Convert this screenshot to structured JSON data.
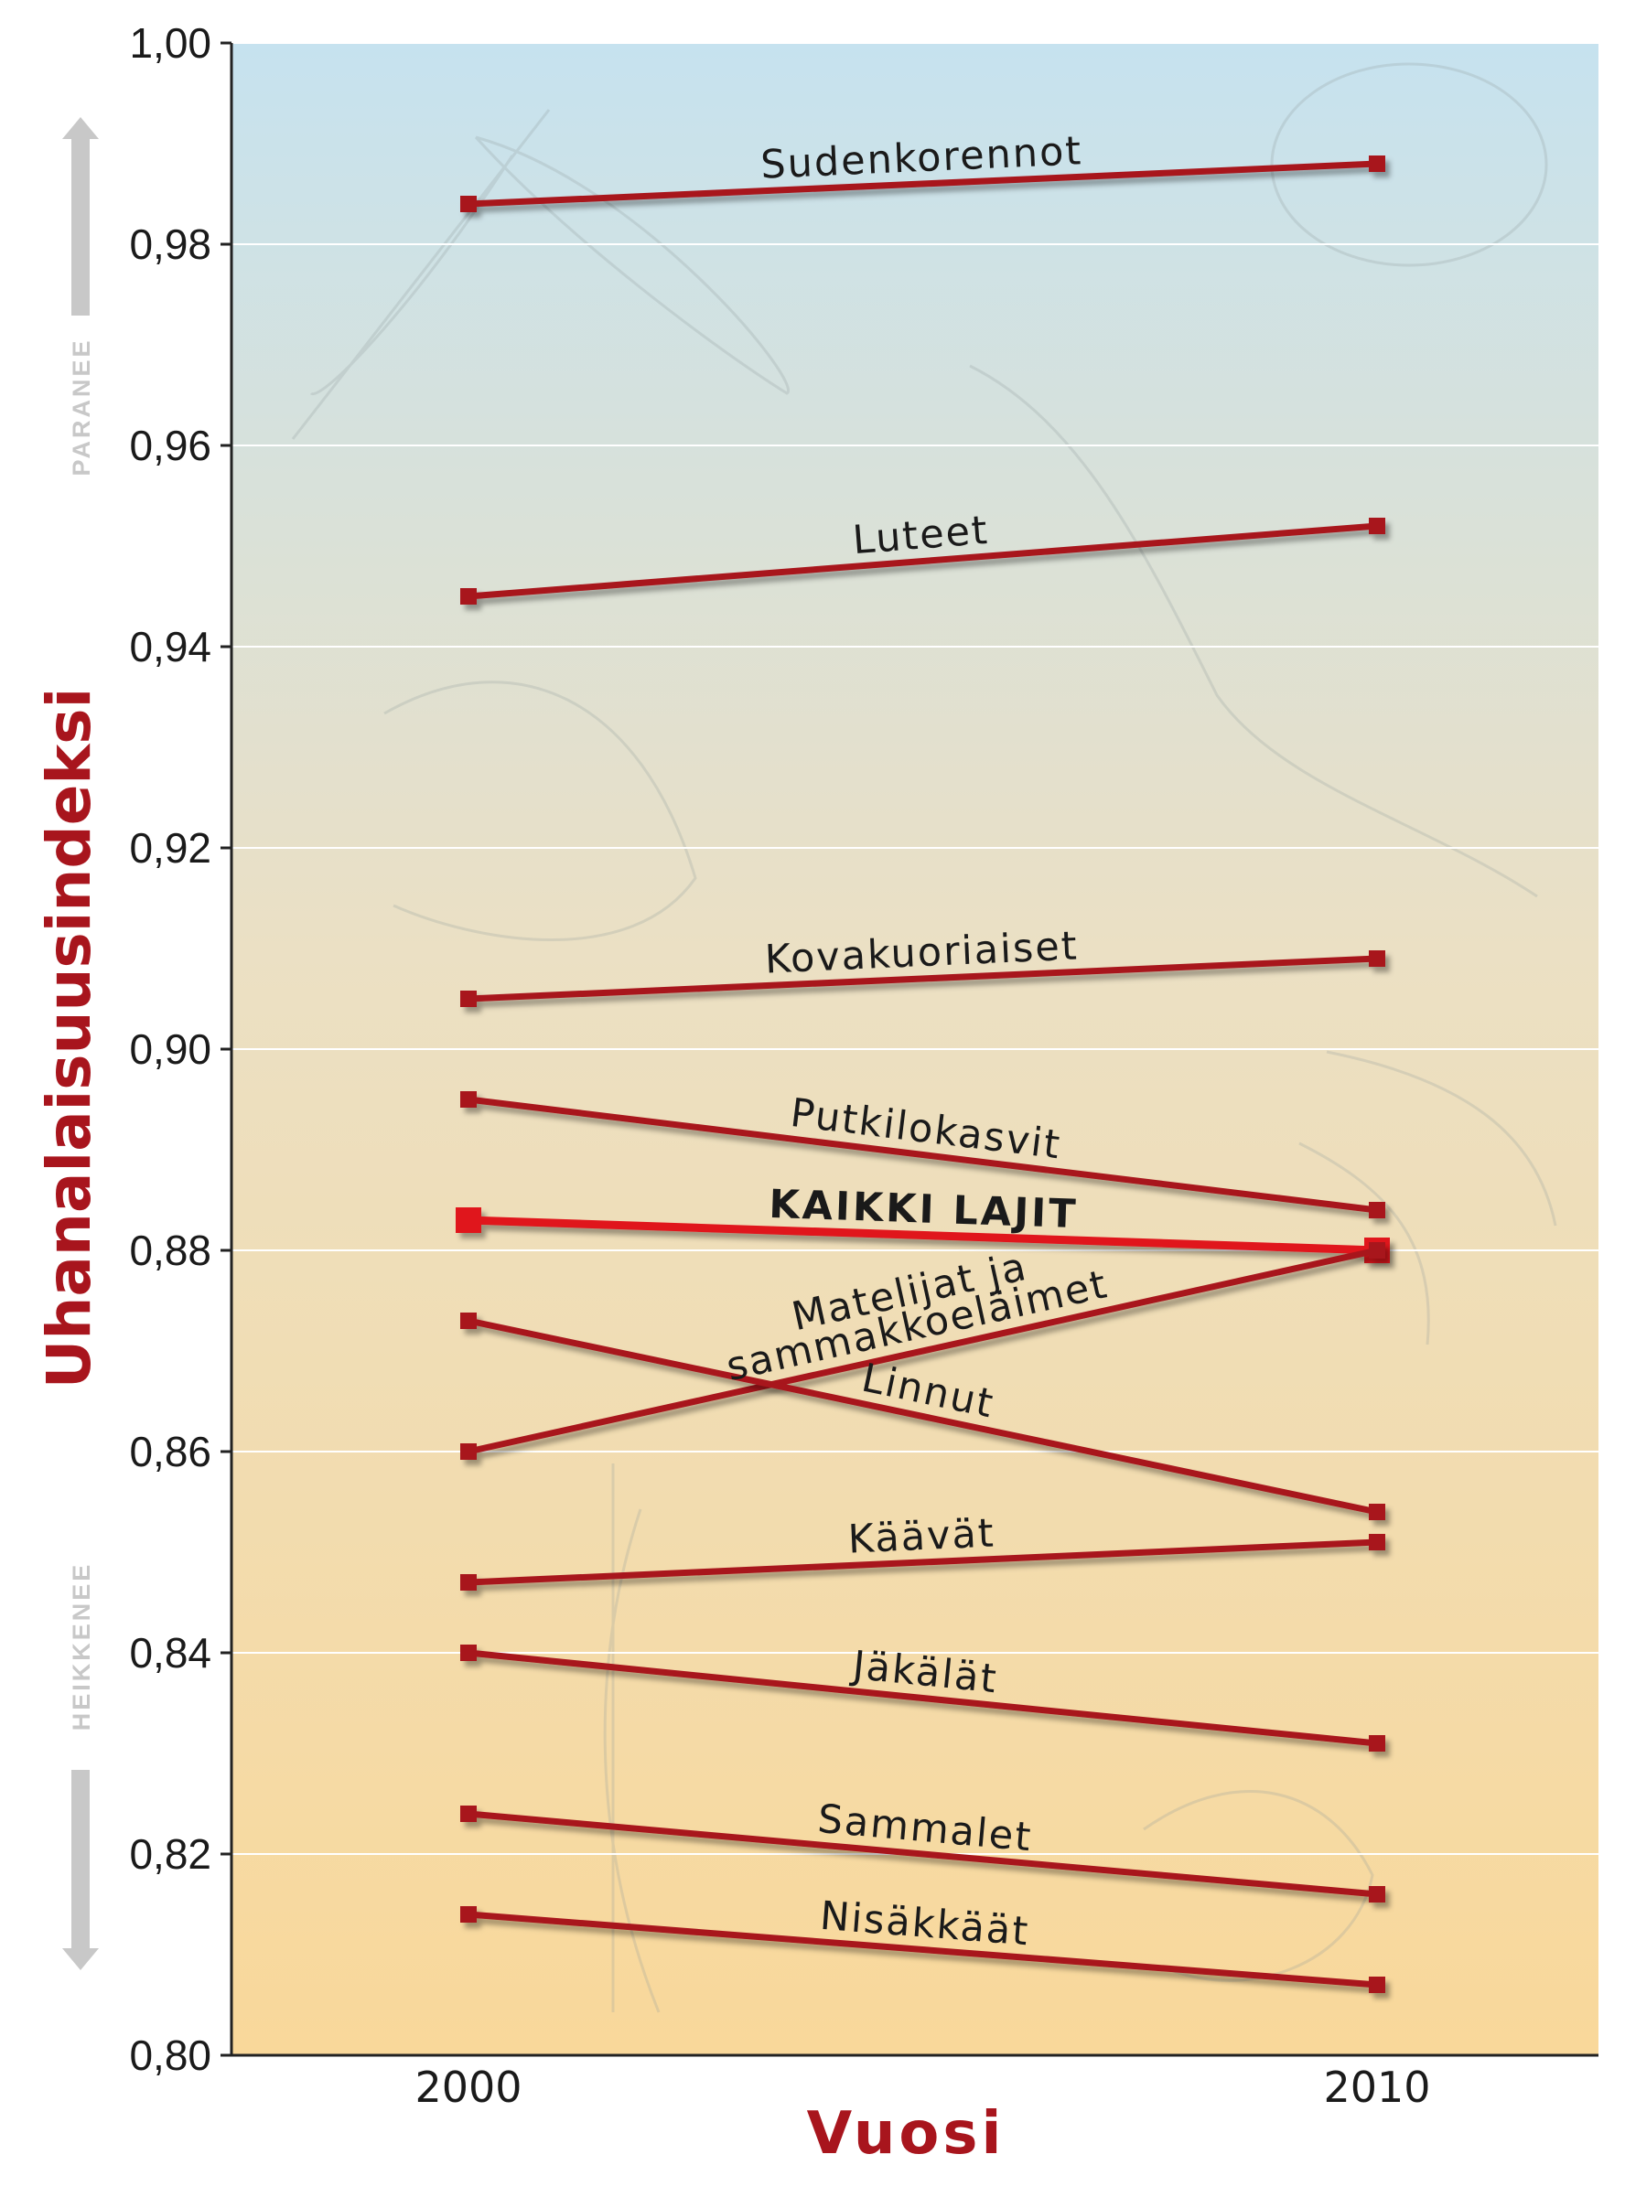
{
  "chart_data": {
    "type": "line",
    "ylabel": "Uhanalaisuusindeksi",
    "xlabel": "Vuosi",
    "x": [
      "2000",
      "2010"
    ],
    "ylim": [
      0.8,
      1.0
    ],
    "yticks": [
      0.8,
      0.82,
      0.84,
      0.86,
      0.88,
      0.9,
      0.92,
      0.94,
      0.96,
      0.98,
      1.0
    ],
    "ytick_labels": [
      "0,80",
      "0,82",
      "0,84",
      "0,86",
      "0,88",
      "0,90",
      "0,92",
      "0,94",
      "0,96",
      "0,98",
      "1,00"
    ],
    "grid": "horizontal",
    "background": "gradient light blue (top) to light orange (bottom)",
    "series": [
      {
        "name": "Sudenkorennot",
        "values": [
          0.984,
          0.988
        ]
      },
      {
        "name": "Luteet",
        "values": [
          0.945,
          0.952
        ]
      },
      {
        "name": "Kovakuoriaiset",
        "values": [
          0.905,
          0.909
        ]
      },
      {
        "name": "Putkilokasvit",
        "values": [
          0.895,
          0.884
        ]
      },
      {
        "name": "KAIKKI LAJIT",
        "values": [
          0.883,
          0.88
        ],
        "highlight": true
      },
      {
        "name": "Matelijat ja sammakkoeläimet",
        "values": [
          0.86,
          0.88
        ]
      },
      {
        "name": "Linnut",
        "values": [
          0.873,
          0.854
        ]
      },
      {
        "name": "Käävät",
        "values": [
          0.847,
          0.851
        ]
      },
      {
        "name": "Jäkälät",
        "values": [
          0.84,
          0.831
        ]
      },
      {
        "name": "Sammalet",
        "values": [
          0.824,
          0.816
        ]
      },
      {
        "name": "Nisäkkäät",
        "values": [
          0.814,
          0.807
        ]
      }
    ],
    "label_lines": {
      "Matelijat ja sammakkoeläimet": [
        "Matelijat ja",
        "sammakkoeläimet"
      ]
    },
    "side_labels": {
      "top": "PARANEE",
      "bottom": "HEIKKENEE"
    }
  },
  "colors": {
    "line": "#a8151d",
    "highlight_line": "#e0141f",
    "axis_title": "#a8151d",
    "grid": "#ffffff",
    "bg_top": "#c6e2ef",
    "bg_bottom": "#f9d89a",
    "side_arrow": "#c8c8c8"
  }
}
